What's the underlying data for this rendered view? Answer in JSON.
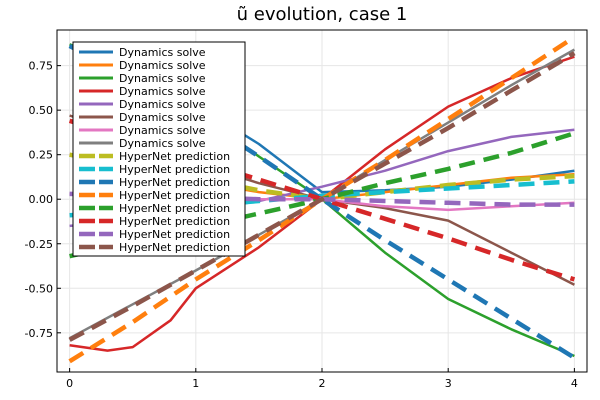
{
  "chart_data": {
    "type": "line",
    "title": "ũ evolution, case 1",
    "xlabel": "",
    "ylabel": "",
    "xlim": [
      -0.1,
      4.1
    ],
    "ylim": [
      -0.97,
      0.95
    ],
    "xticks": [
      0,
      1,
      2,
      3,
      4
    ],
    "xtick_labels": [
      "0",
      "1",
      "2",
      "3",
      "4"
    ],
    "yticks": [
      -0.75,
      -0.5,
      -0.25,
      0.0,
      0.25,
      0.5,
      0.75
    ],
    "ytick_labels": [
      "-0.75",
      "-0.50",
      "-0.25",
      "0.00",
      "0.25",
      "0.50",
      "0.75"
    ],
    "grid": true,
    "legend_position": "top-left",
    "series": [
      {
        "name": "Dynamics solve",
        "color": "#1f77b4",
        "style": "solid",
        "x": [
          0,
          0.5,
          1,
          1.5,
          2,
          2.5,
          3,
          3.5,
          4
        ],
        "y": [
          0.86,
          0.7,
          0.53,
          0.31,
          0.04,
          0.05,
          0.07,
          0.11,
          0.16
        ]
      },
      {
        "name": "Dynamics solve",
        "color": "#ff7f0e",
        "style": "solid",
        "x": [
          0,
          0.5,
          1,
          1.5,
          2,
          2.5,
          3,
          3.5,
          4
        ],
        "y": [
          0.25,
          0.2,
          0.1,
          0.04,
          0.0,
          0.04,
          0.08,
          0.12,
          0.14
        ]
      },
      {
        "name": "Dynamics solve",
        "color": "#2ca02c",
        "style": "solid",
        "x": [
          0,
          0.5,
          1,
          1.5,
          2,
          2.5,
          3,
          3.5,
          4
        ],
        "y": [
          0.87,
          0.72,
          0.5,
          0.24,
          0.0,
          -0.3,
          -0.56,
          -0.73,
          -0.88
        ]
      },
      {
        "name": "Dynamics solve",
        "color": "#d62728",
        "style": "solid",
        "x": [
          0,
          0.3,
          0.5,
          0.8,
          1,
          1.5,
          2,
          2.5,
          3,
          3.5,
          4
        ],
        "y": [
          -0.82,
          -0.85,
          -0.83,
          -0.68,
          -0.5,
          -0.27,
          0.0,
          0.28,
          0.52,
          0.68,
          0.8
        ]
      },
      {
        "name": "Dynamics solve",
        "color": "#9467bd",
        "style": "solid",
        "x": [
          0,
          0.5,
          1,
          1.5,
          2,
          2.5,
          3,
          3.5,
          4
        ],
        "y": [
          -0.15,
          -0.12,
          -0.07,
          -0.01,
          0.07,
          0.16,
          0.27,
          0.35,
          0.39
        ]
      },
      {
        "name": "Dynamics solve",
        "color": "#8c564b",
        "style": "solid",
        "x": [
          0,
          0.5,
          1,
          1.5,
          2,
          2.5,
          3,
          3.5,
          4
        ],
        "y": [
          0.47,
          0.35,
          0.2,
          0.09,
          0.0,
          -0.05,
          -0.12,
          -0.3,
          -0.48
        ]
      },
      {
        "name": "Dynamics solve",
        "color": "#e377c2",
        "style": "solid",
        "x": [
          0,
          0.5,
          1,
          1.5,
          2,
          2.5,
          3,
          3.5,
          4
        ],
        "y": [
          0.03,
          0.02,
          0.01,
          0.0,
          0.0,
          -0.04,
          -0.06,
          -0.04,
          -0.02
        ]
      },
      {
        "name": "Dynamics solve",
        "color": "#7f7f7f",
        "style": "solid",
        "x": [
          0,
          0.5,
          1,
          1.5,
          2,
          2.5,
          3,
          3.5,
          4
        ],
        "y": [
          -0.78,
          -0.59,
          -0.4,
          -0.2,
          0.0,
          0.22,
          0.43,
          0.64,
          0.84
        ]
      },
      {
        "name": "HyperNet prediction",
        "color": "#bcbd22",
        "style": "dashed",
        "x": [
          0,
          0.5,
          1,
          1.5,
          2,
          2.5,
          3,
          3.5,
          4
        ],
        "y": [
          0.25,
          0.18,
          0.12,
          0.05,
          0.0,
          0.04,
          0.08,
          0.11,
          0.13
        ]
      },
      {
        "name": "HyperNet prediction",
        "color": "#17becf",
        "style": "dashed",
        "x": [
          0,
          0.5,
          1,
          1.5,
          2,
          2.5,
          3,
          3.5,
          4
        ],
        "y": [
          -0.09,
          -0.07,
          -0.04,
          -0.01,
          0.02,
          0.04,
          0.06,
          0.08,
          0.1
        ]
      },
      {
        "name": "HyperNet prediction",
        "color": "#1f77b4",
        "style": "dashed",
        "x": [
          0,
          0.5,
          1,
          1.5,
          2,
          2.5,
          3,
          3.5,
          4
        ],
        "y": [
          0.86,
          0.68,
          0.47,
          0.24,
          0.0,
          -0.23,
          -0.45,
          -0.67,
          -0.89
        ]
      },
      {
        "name": "HyperNet prediction",
        "color": "#ff7f0e",
        "style": "dashed",
        "x": [
          0,
          0.5,
          1,
          1.5,
          2,
          2.5,
          3,
          3.5,
          4
        ],
        "y": [
          -0.91,
          -0.69,
          -0.45,
          -0.23,
          0.0,
          0.22,
          0.45,
          0.68,
          0.91
        ]
      },
      {
        "name": "HyperNet prediction",
        "color": "#2ca02c",
        "style": "dashed",
        "x": [
          0,
          0.5,
          1,
          1.5,
          2,
          2.5,
          3,
          3.5,
          4
        ],
        "y": [
          -0.32,
          -0.24,
          -0.16,
          -0.08,
          0.0,
          0.09,
          0.17,
          0.26,
          0.37
        ]
      },
      {
        "name": "HyperNet prediction",
        "color": "#d62728",
        "style": "dashed",
        "x": [
          0,
          0.5,
          1,
          1.5,
          2,
          2.5,
          3,
          3.5,
          4
        ],
        "y": [
          0.44,
          0.33,
          0.22,
          0.11,
          0.0,
          -0.11,
          -0.22,
          -0.34,
          -0.45
        ]
      },
      {
        "name": "HyperNet prediction",
        "color": "#9467bd",
        "style": "dashed",
        "x": [
          0,
          0.5,
          1,
          1.5,
          2,
          2.5,
          3,
          3.5,
          4
        ],
        "y": [
          0.03,
          0.02,
          0.01,
          0.0,
          0.0,
          -0.01,
          -0.02,
          -0.03,
          -0.03
        ]
      },
      {
        "name": "HyperNet prediction",
        "color": "#8c564b",
        "style": "dashed",
        "x": [
          0,
          0.5,
          1,
          1.5,
          2,
          2.5,
          3,
          3.5,
          4
        ],
        "y": [
          -0.79,
          -0.6,
          -0.4,
          -0.2,
          0.0,
          0.2,
          0.4,
          0.61,
          0.82
        ]
      }
    ]
  }
}
